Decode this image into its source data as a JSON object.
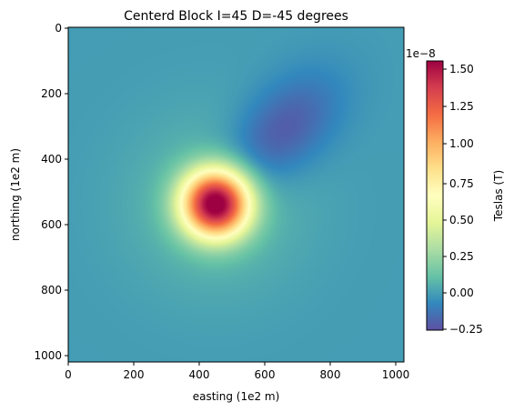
{
  "chart_data": {
    "type": "heatmap",
    "title": "Centerd Block I=45 D=-45 degrees",
    "xlabel": "easting (1e2 m)",
    "ylabel": "northing (1e2 m)",
    "xlim": [
      0,
      1024
    ],
    "ylim": [
      1024,
      0
    ],
    "x_ticks": [
      "0",
      "200",
      "400",
      "600",
      "800",
      "1000"
    ],
    "y_ticks": [
      "0",
      "200",
      "400",
      "600",
      "800",
      "1000"
    ],
    "colormap": "Spectral_r",
    "colorbar": {
      "label": "Teslas (T)",
      "multiplier": "1e−8",
      "range": [
        -0.27,
        1.58
      ],
      "ticks": [
        "−0.25",
        "0.00",
        "0.25",
        "0.50",
        "0.75",
        "1.00",
        "1.25",
        "1.50"
      ]
    },
    "features": [
      {
        "name": "positive anomaly peak",
        "easting": 450,
        "northing": 540,
        "value": 1.55
      },
      {
        "name": "negative anomaly trough",
        "easting": 650,
        "northing": 320,
        "value": -0.25
      }
    ],
    "background_value": -0.02
  }
}
